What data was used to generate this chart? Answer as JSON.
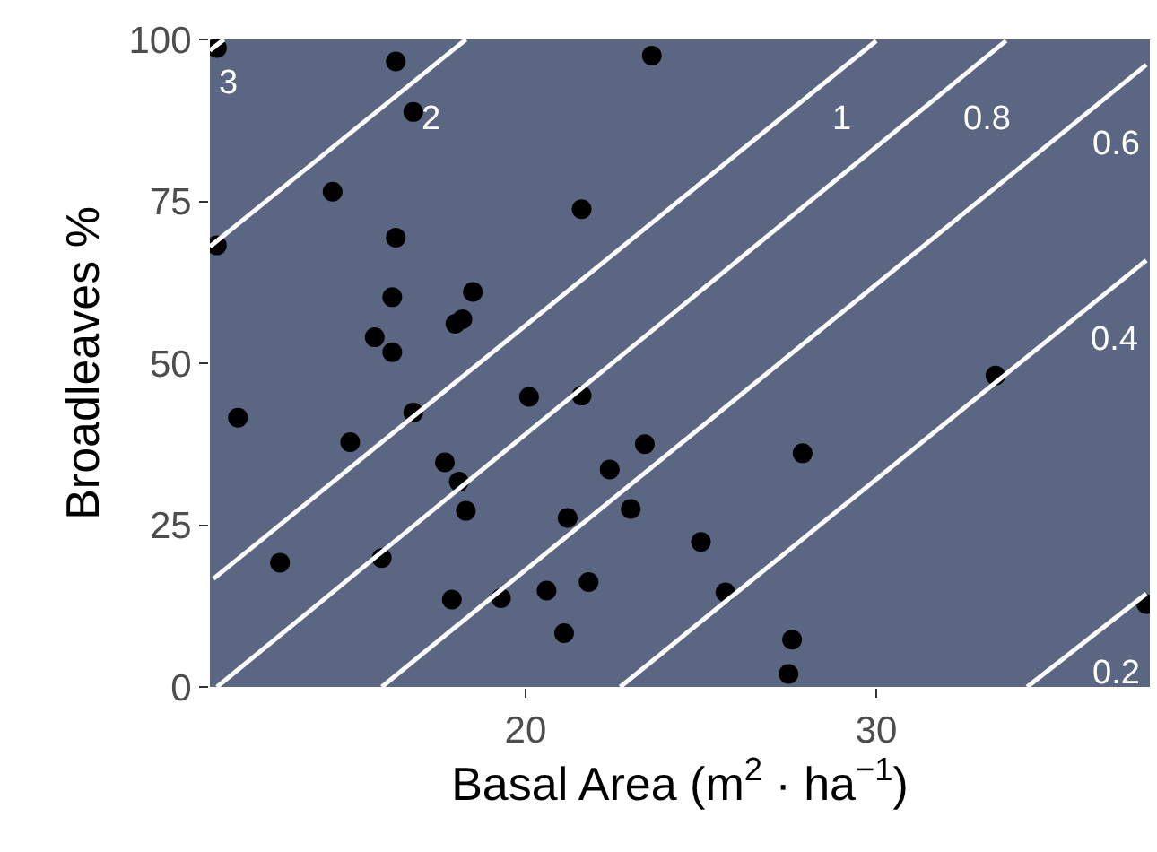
{
  "chart_data": {
    "type": "scatter",
    "xlabel": "Basal Area (m$^{2}$ · ha$^{−1}$)",
    "ylabel": "Broadleaves %",
    "xlim": [
      11,
      37.8
    ],
    "ylim": [
      0,
      100
    ],
    "xticks": [
      20,
      30
    ],
    "yticks": [
      0,
      25,
      50,
      75,
      100
    ],
    "grid": false,
    "marker": "circle",
    "series": [
      {
        "type": "line",
        "name": "3",
        "marker": "none",
        "color": "#ffffff",
        "x": [
          11,
          11.4
        ],
        "values": [
          98.3,
          100
        ]
      },
      {
        "type": "line",
        "name": "2",
        "marker": "none",
        "color": "#ffffff",
        "x": [
          11,
          18.3
        ],
        "values": [
          68,
          100
        ]
      },
      {
        "type": "line",
        "name": "1",
        "marker": "none",
        "color": "#ffffff",
        "x": [
          11.1,
          30.0
        ],
        "values": [
          16.7,
          99.8
        ]
      },
      {
        "type": "line",
        "name": "0.8",
        "marker": "none",
        "color": "#ffffff",
        "x": [
          11.2,
          33.7
        ],
        "values": [
          0,
          99.8
        ]
      },
      {
        "type": "line",
        "name": "0.6",
        "marker": "none",
        "color": "#ffffff",
        "x": [
          15.9,
          37.7
        ],
        "values": [
          0,
          96.1
        ]
      },
      {
        "type": "line",
        "name": "0.4",
        "marker": "none",
        "color": "#ffffff",
        "x": [
          22.7,
          37.7
        ],
        "values": [
          0,
          65.9
        ]
      },
      {
        "type": "line",
        "name": "0.2",
        "marker": "none",
        "color": "#ffffff",
        "x": [
          34.3,
          37.7
        ],
        "values": [
          0,
          14.4
        ]
      },
      {
        "color": "#000000",
        "x": [
          11.2,
          16.3,
          23.6,
          16.8,
          14.5,
          11.2,
          21.6,
          16.3,
          16.2,
          18.5,
          18.0,
          18.2,
          15.7,
          16.2,
          11.8,
          15.0,
          16.8,
          20.1,
          21.6,
          17.7,
          18.1,
          18.3,
          23.4,
          22.4,
          23.0,
          21.2,
          13.0,
          15.9,
          17.9,
          19.3,
          20.6,
          21.8,
          21.1,
          33.4,
          27.9,
          25.0,
          25.7,
          27.6,
          27.5,
          37.7
        ],
        "values": [
          98.7,
          96.6,
          97.5,
          88.8,
          76.5,
          68.2,
          73.8,
          69.4,
          60.2,
          61.0,
          56.1,
          56.8,
          54.0,
          51.7,
          41.6,
          37.8,
          42.4,
          44.8,
          45.0,
          34.7,
          31.7,
          27.2,
          37.5,
          33.6,
          27.5,
          26.1,
          19.2,
          19.9,
          13.5,
          13.7,
          14.9,
          16.2,
          8.3,
          48.1,
          36.1,
          22.4,
          14.6,
          7.3,
          2.0,
          12.8
        ]
      }
    ]
  }
}
